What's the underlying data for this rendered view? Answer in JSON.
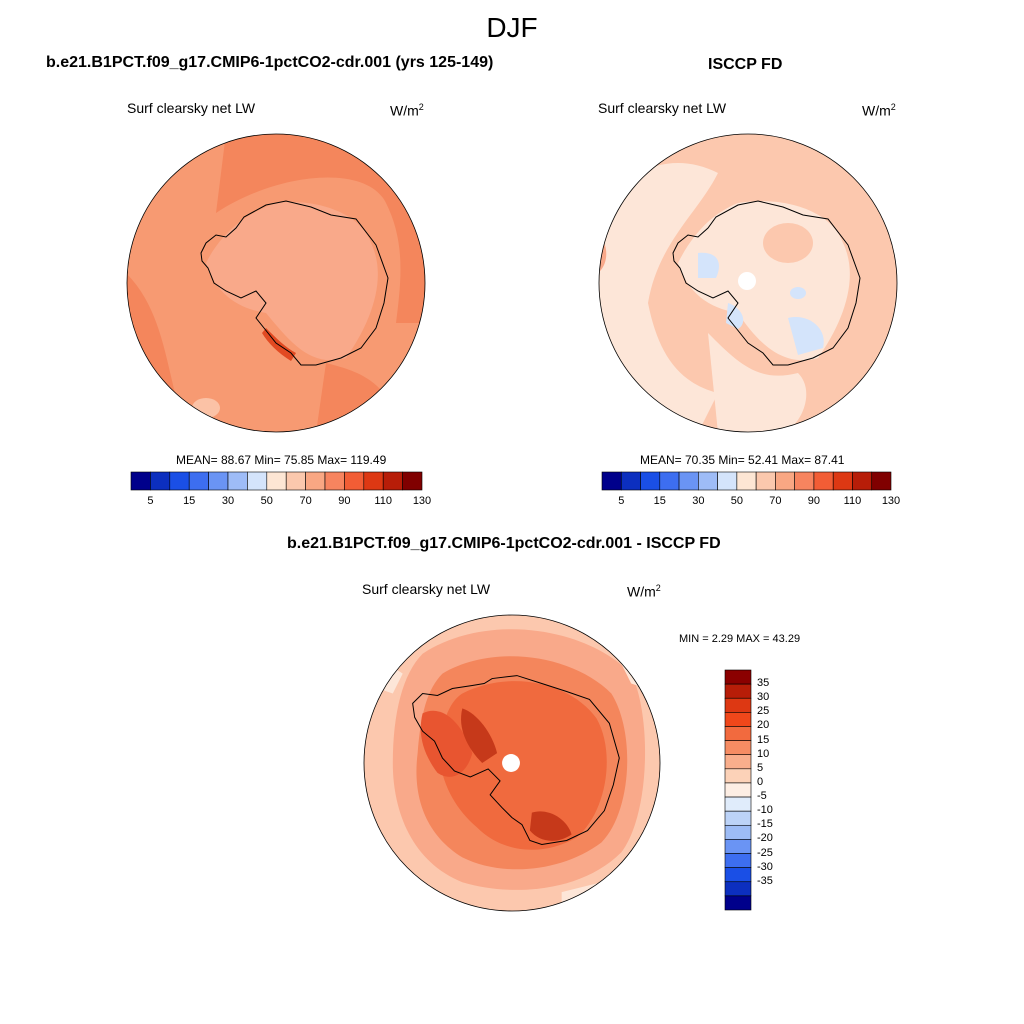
{
  "figure_title": "DJF",
  "panels": [
    {
      "title": "b.e21.B1PCT.f09_g17.CMIP6-1pctCO2-cdr.001 (yrs 125-149)",
      "variable": "Surf clearsky net LW",
      "units_base": "W/m",
      "units_exp": "2",
      "stats": "MEAN=  88.67  Min=  75.85  Max= 119.49"
    },
    {
      "title": "ISCCP FD",
      "variable": "Surf clearsky net LW",
      "units_base": "W/m",
      "units_exp": "2",
      "stats": "MEAN=  70.35  Min=  52.41  Max=  87.41"
    },
    {
      "title": "b.e21.B1PCT.f09_g17.CMIP6-1pctCO2-cdr.001 - ISCCP FD",
      "variable": "Surf clearsky net LW",
      "units_base": "W/m",
      "units_exp": "2",
      "stats": "MIN =   2.29 MAX =  43.29"
    }
  ],
  "colorbar_main": {
    "colors": [
      "#00008b",
      "#0c2fbf",
      "#1a4fe6",
      "#3d6ef0",
      "#6a94f4",
      "#9ebcf7",
      "#d4e4fb",
      "#fde6d4",
      "#fbc8ad",
      "#f9a783",
      "#f7845f",
      "#f25d35",
      "#dd3813",
      "#b71d08",
      "#800000"
    ],
    "labels": [
      "5",
      "15",
      "30",
      "50",
      "70",
      "90",
      "110",
      "130"
    ]
  },
  "colorbar_diff": {
    "colors": [
      "#8b0000",
      "#b71d08",
      "#dd3813",
      "#f0471a",
      "#f26a3e",
      "#f68c63",
      "#f9ae8c",
      "#fcd2b8",
      "#fdeee4",
      "#e0ecfb",
      "#bcd3f8",
      "#9dbcf6",
      "#6a94f4",
      "#3d6ef0",
      "#1a4fe6",
      "#0c2fbf",
      "#00008b"
    ],
    "labels": [
      "35",
      "30",
      "25",
      "20",
      "15",
      "10",
      "5",
      "0",
      "-5",
      "-10",
      "-15",
      "-20",
      "-25",
      "-30",
      "-35"
    ]
  }
}
